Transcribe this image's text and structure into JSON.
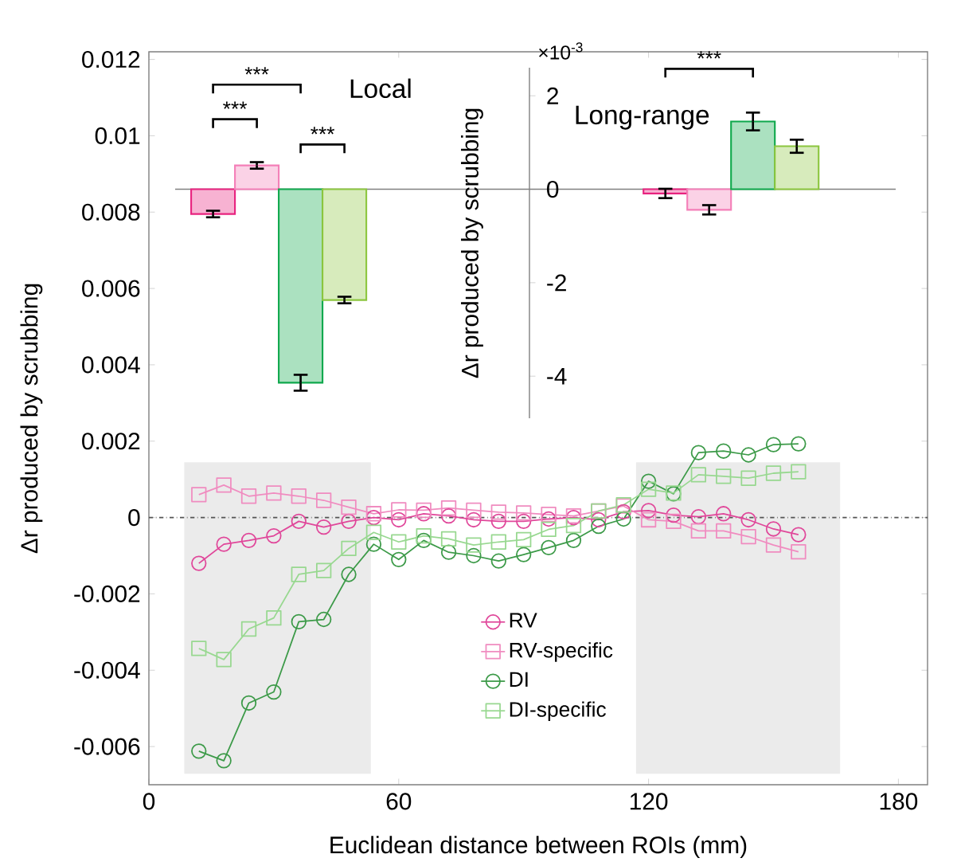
{
  "chart_data": [
    {
      "type": "line",
      "xlabel": "Euclidean distance between ROIs (mm)",
      "ylabel": "Δr produced by scrubbing",
      "x": [
        12,
        18,
        24,
        30,
        36,
        42,
        48,
        54,
        60,
        66,
        72,
        78,
        84,
        90,
        96,
        102,
        108,
        114,
        120,
        126,
        132,
        138,
        144,
        150,
        156
      ],
      "series": [
        {
          "name": "RV",
          "color": "#e0479a",
          "marker": "circle",
          "values": [
            -0.0012,
            -0.0007,
            -0.0006,
            -0.00048,
            -0.0001,
            -0.00025,
            -0.0001,
            0,
            -6e-05,
            0.0001,
            4e-05,
            -6e-05,
            -0.0001,
            -0.0001,
            -4e-05,
            0,
            -6e-05,
            0.00015,
            0.00018,
            6e-05,
            2e-05,
            0.0001,
            -6e-05,
            -0.0003,
            -0.00045
          ]
        },
        {
          "name": "RV-specific",
          "color": "#f08cc0",
          "marker": "square",
          "values": [
            0.0006,
            0.00085,
            0.00056,
            0.00064,
            0.00056,
            0.00045,
            0.00027,
            0.0001,
            0.0002,
            0.00019,
            0.00025,
            0.00019,
            0.00014,
            0.00012,
            8e-05,
            4e-05,
            0.00017,
            0.0003,
            -6e-05,
            -0.0001,
            -0.00035,
            -0.00035,
            -0.0005,
            -0.00072,
            -0.0009
          ]
        },
        {
          "name": "DI",
          "color": "#3c9a48",
          "marker": "circle",
          "values": [
            -0.00612,
            -0.00637,
            -0.00486,
            -0.00457,
            -0.00273,
            -0.00267,
            -0.00149,
            -0.0007,
            -0.0011,
            -0.0006,
            -0.00091,
            -0.001,
            -0.00114,
            -0.00097,
            -0.00079,
            -0.0006,
            -0.00023,
            -4e-05,
            0.00095,
            0.00062,
            0.0017,
            0.00174,
            0.00164,
            0.00191,
            0.00193
          ]
        },
        {
          "name": "DI-specific",
          "color": "#98d890",
          "marker": "square",
          "values": [
            -0.00343,
            -0.00372,
            -0.00292,
            -0.00263,
            -0.00149,
            -0.00139,
            -0.00081,
            -0.00039,
            -0.00064,
            -0.00048,
            -0.00056,
            -0.00072,
            -0.00064,
            -0.00058,
            -0.00031,
            -0.00021,
            0.00017,
            0.00033,
            0.00074,
            0.00064,
            0.00112,
            0.00108,
            0.00103,
            0.00116,
            0.0012
          ]
        }
      ],
      "xlim": [
        0,
        187
      ],
      "xticks": [
        0,
        60,
        120,
        180
      ],
      "ylim": [
        -0.007,
        0.0122
      ],
      "yticks": [
        -0.006,
        -0.004,
        -0.002,
        0,
        0.002,
        0.004,
        0.006,
        0.008,
        0.01,
        0.012
      ],
      "ref_lines": [
        {
          "axis": "y",
          "value": 0,
          "color": "#555555",
          "line_style": "dashed"
        }
      ],
      "bands": [
        {
          "axis": "x",
          "from": 8.5,
          "to": 53.3,
          "color": "#ebebeb"
        },
        {
          "axis": "x",
          "from": 117,
          "to": 166,
          "color": "#ebebeb"
        }
      ],
      "legend": "bottom"
    },
    {
      "type": "bar",
      "ylabel": "Δr produced by scrubbing",
      "categories": [
        "Local",
        "Long-range"
      ],
      "series": [
        {
          "color": "#e8237f",
          "values": [
            -0.53,
            -0.09
          ],
          "errors": [
            0.07,
            0.1
          ]
        },
        {
          "color": "#f47fb8",
          "values": [
            0.51,
            -0.44
          ],
          "errors": [
            0.07,
            0.1
          ]
        },
        {
          "color": "#0fa84c",
          "values": [
            -4.14,
            1.45
          ],
          "errors": [
            0.17,
            0.19
          ]
        },
        {
          "color": "#8cc63f",
          "values": [
            -2.37,
            0.92
          ],
          "errors": [
            0.07,
            0.14
          ]
        }
      ],
      "ylim": [
        -4.9,
        2.6
      ],
      "yticks": [
        -4,
        -2,
        0,
        2
      ],
      "annotations": [
        "×10$^{-3}$",
        "***",
        "***",
        "***",
        "***"
      ]
    }
  ]
}
